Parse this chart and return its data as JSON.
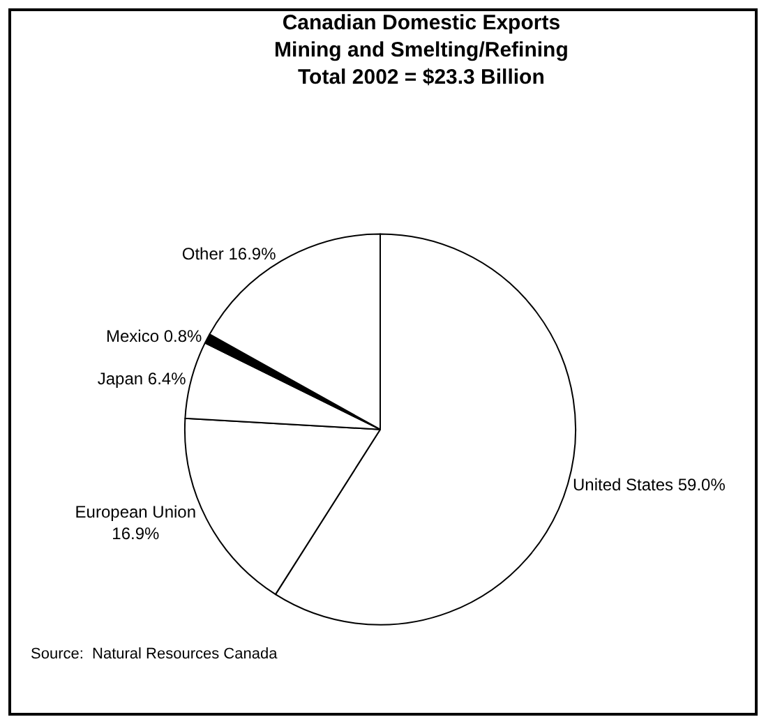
{
  "chart_data": {
    "type": "pie",
    "title": "Canadian Domestic Exports\nMining and Smelting/Refining\nTotal 2002 = $23.3 Billion",
    "categories": [
      "United States",
      "European Union",
      "Japan",
      "Mexico",
      "Other"
    ],
    "values": [
      59.0,
      16.9,
      6.4,
      0.8,
      16.9
    ],
    "value_labels": [
      "59.0%",
      "16.9%",
      "6.4%",
      "0.8%",
      "16.9%"
    ],
    "colors": [
      "#ffffff",
      "#ffffff",
      "#ffffff",
      "#000000",
      "#ffffff"
    ],
    "legend": false,
    "annotations": [
      "Source:  Natural Resources Canada"
    ]
  }
}
